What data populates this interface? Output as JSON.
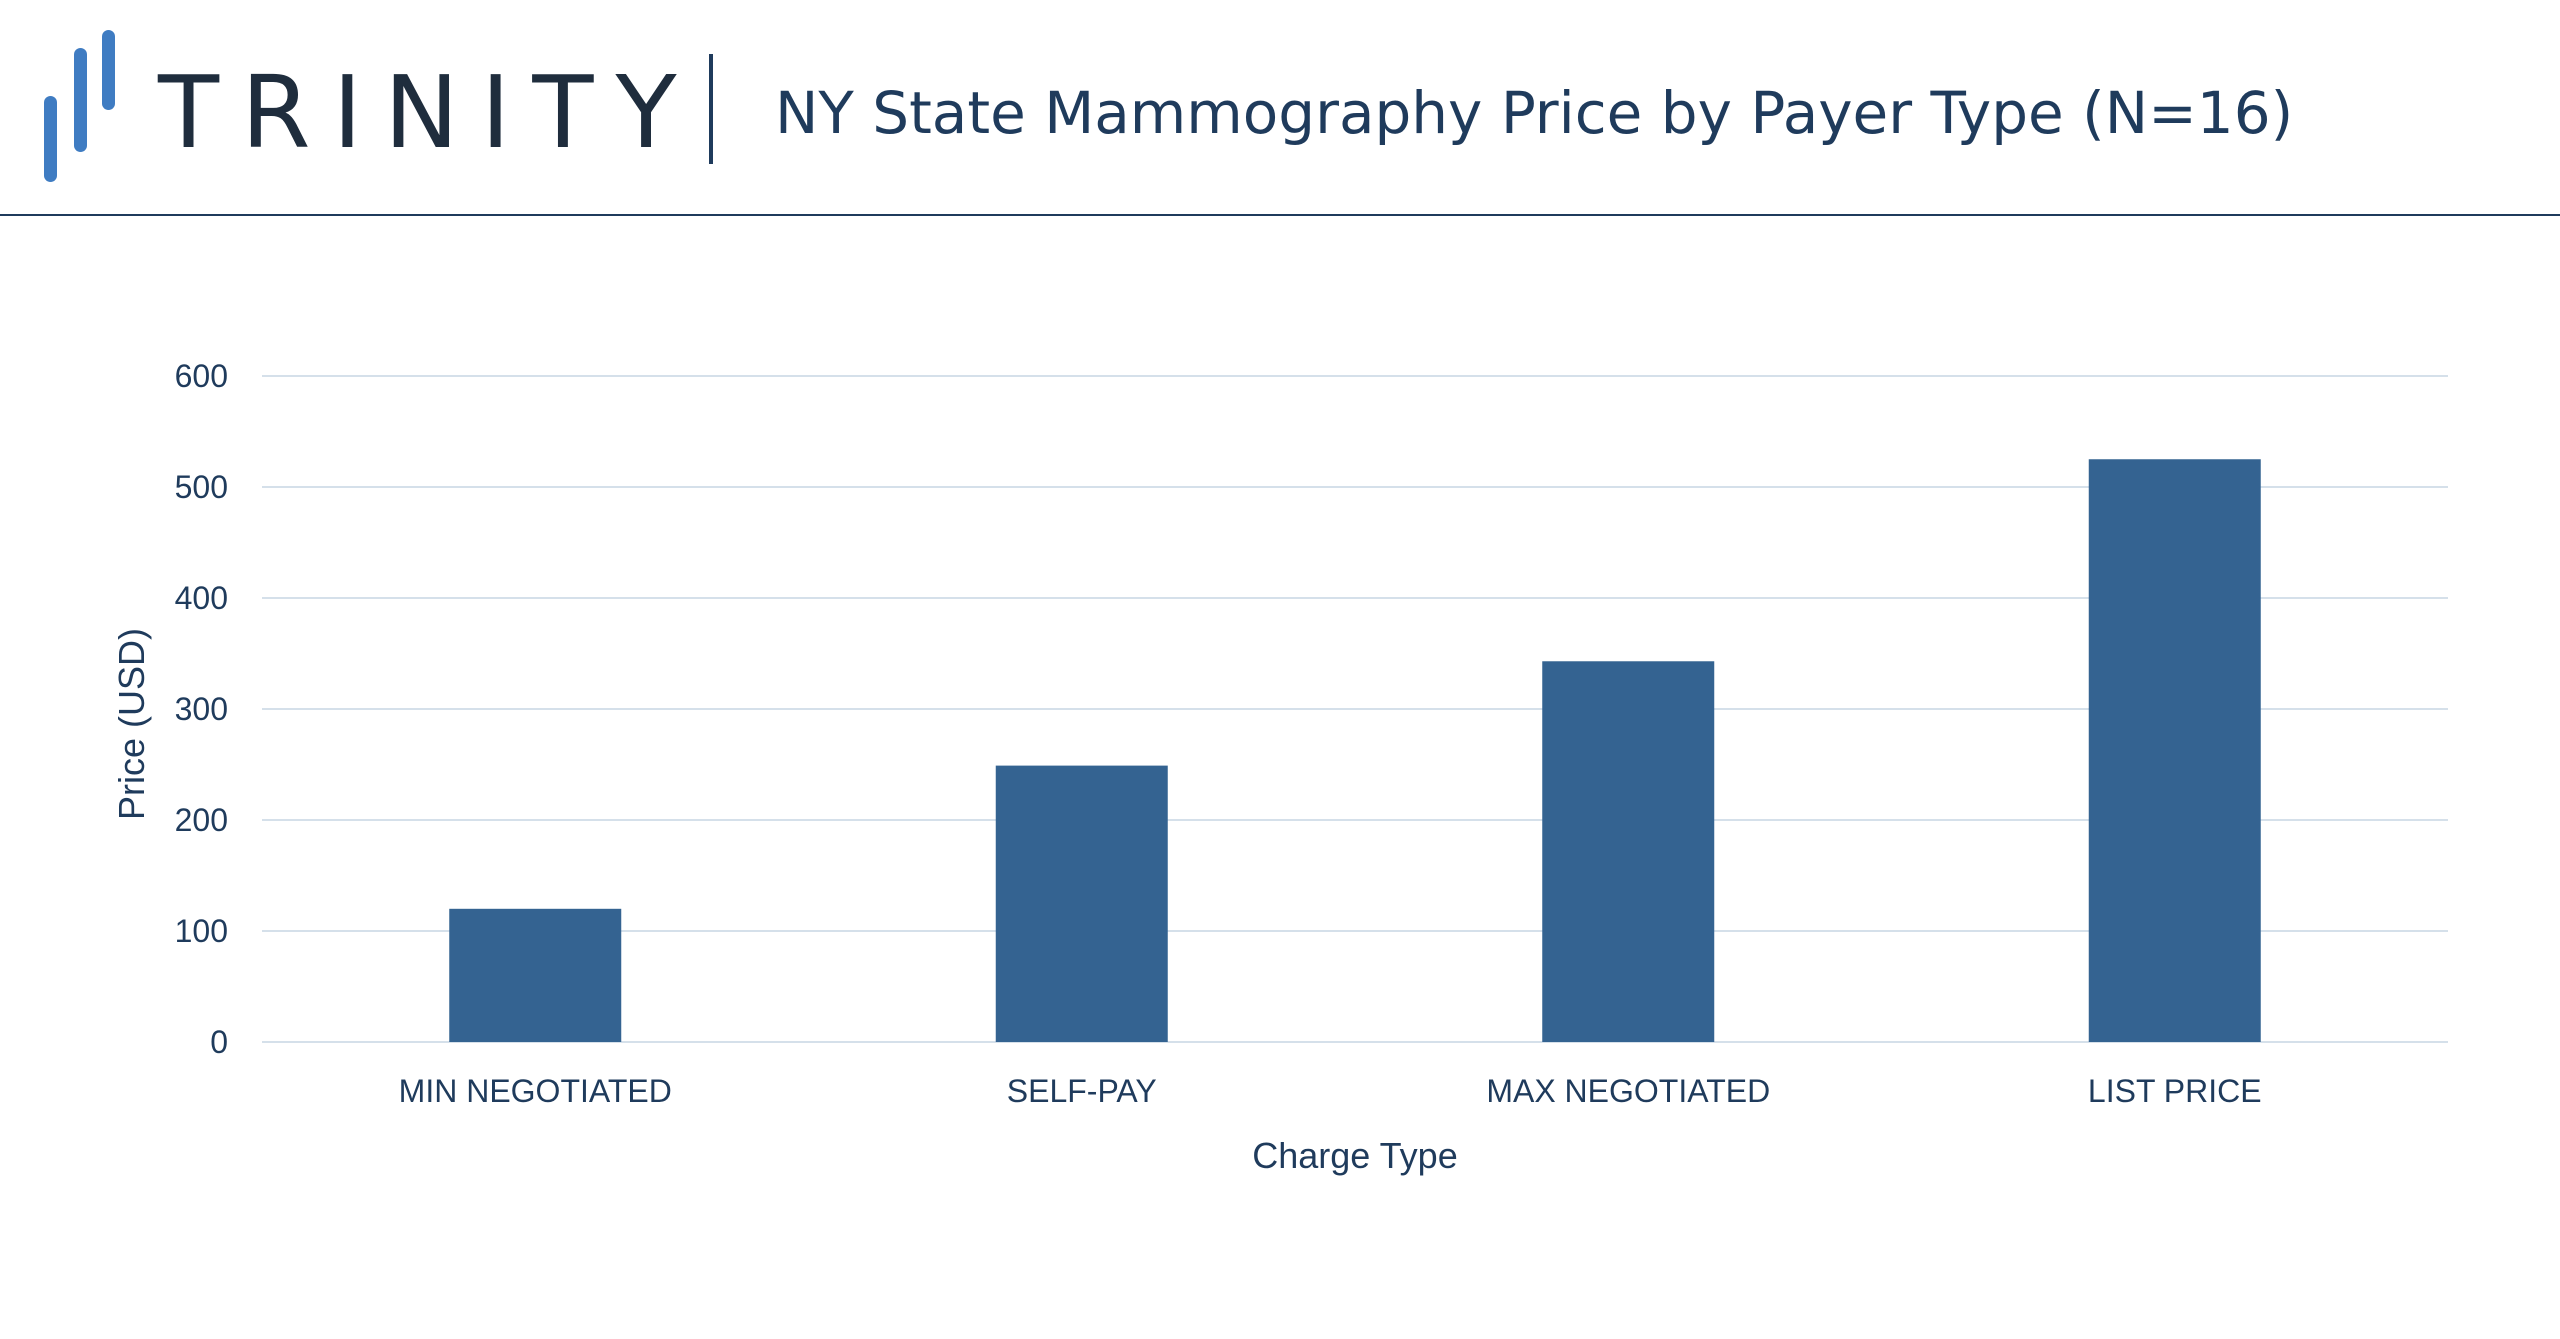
{
  "header": {
    "brand": "TRINITY",
    "title": "NY State Mammography Price by Payer Type (N=16)"
  },
  "colors": {
    "bar": "#346391",
    "grid": "#d5e0ea",
    "text": "#1f3b5c",
    "logo": "#3f7cc2"
  },
  "chart_data": {
    "type": "bar",
    "title": "NY State Mammography Price by Payer Type (N=16)",
    "categories": [
      "MIN NEGOTIATED",
      "SELF-PAY",
      "MAX NEGOTIATED",
      "LIST PRICE"
    ],
    "values": [
      120,
      249,
      343,
      525
    ],
    "xlabel": "Charge Type",
    "ylabel": "Price (USD)",
    "ylim": [
      0,
      600
    ],
    "yticks": [
      0,
      100,
      200,
      300,
      400,
      500,
      600
    ],
    "grid": true,
    "legend": "none"
  }
}
